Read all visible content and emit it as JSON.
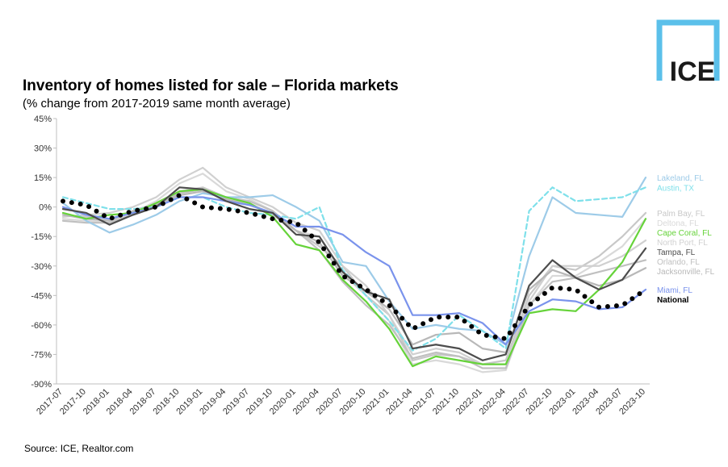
{
  "logo": "ICE",
  "source": "Source: ICE, Realtor.com",
  "chart_data": {
    "type": "line",
    "title": "Inventory of homes listed for sale – Florida markets",
    "subtitle": "(% change from 2017-2019 same month average)",
    "categories": [
      "2017-07",
      "2017-10",
      "2018-01",
      "2018-04",
      "2018-07",
      "2018-10",
      "2019-01",
      "2019-04",
      "2019-07",
      "2019-10",
      "2020-01",
      "2020-04",
      "2020-07",
      "2020-10",
      "2021-01",
      "2021-04",
      "2021-07",
      "2021-10",
      "2022-01",
      "2022-04",
      "2022-07",
      "2022-10",
      "2023-01",
      "2023-04",
      "2023-07",
      "2023-10"
    ],
    "ylim": [
      -90,
      45
    ],
    "yticks": [
      {
        "value": 45,
        "label": "45%"
      },
      {
        "value": 30,
        "label": "30%"
      },
      {
        "value": 15,
        "label": "15%"
      },
      {
        "value": 0,
        "label": "0%"
      },
      {
        "value": -15,
        "label": "-15%"
      },
      {
        "value": -30,
        "label": "-30%"
      },
      {
        "value": -45,
        "label": "-45%"
      },
      {
        "value": -60,
        "label": "-60%"
      },
      {
        "value": -75,
        "label": "-75%"
      },
      {
        "value": -90,
        "label": "-90%"
      }
    ],
    "series": [
      {
        "name": "Palm Bay, FL",
        "color": "#c8c8c8",
        "values": [
          -4,
          -5,
          -6,
          -2,
          2,
          8,
          10,
          5,
          2,
          -4,
          -12,
          -20,
          -30,
          -45,
          -55,
          -78,
          -75,
          -76,
          -80,
          -78,
          -45,
          -30,
          -32,
          -25,
          -15,
          -3
        ]
      },
      {
        "name": "Deltona, FL",
        "color": "#d9d9d9",
        "values": [
          -6,
          -7,
          -8,
          -3,
          3,
          12,
          17,
          8,
          4,
          -2,
          -12,
          -15,
          -34,
          -45,
          -58,
          -80,
          -78,
          -80,
          -84,
          -83,
          -50,
          -35,
          -35,
          -28,
          -20,
          -6
        ]
      },
      {
        "name": "North Port, FL",
        "color": "#d0d0d0",
        "values": [
          -5,
          -4,
          -3,
          0,
          5,
          14,
          20,
          10,
          5,
          0,
          -8,
          -12,
          -30,
          -40,
          -55,
          -75,
          -72,
          -74,
          -80,
          -80,
          -48,
          -30,
          -30,
          -30,
          -25,
          -17
        ]
      },
      {
        "name": "Orlando, FL",
        "color": "#c0c0c0",
        "values": [
          -7,
          -8,
          -8,
          -4,
          1,
          7,
          9,
          5,
          3,
          -2,
          -12,
          -22,
          -38,
          -50,
          -60,
          -77,
          -74,
          -76,
          -82,
          -82,
          -50,
          -38,
          -36,
          -33,
          -30,
          -27
        ]
      },
      {
        "name": "Jacksonville, FL",
        "color": "#b8b8b8",
        "values": [
          -4,
          -6,
          -7,
          -2,
          1,
          6,
          8,
          4,
          1,
          -3,
          -12,
          -18,
          -35,
          -43,
          -52,
          -70,
          -65,
          -64,
          -72,
          -74,
          -42,
          -32,
          -36,
          -40,
          -37,
          -31
        ]
      },
      {
        "name": "Lakeland, FL",
        "color": "#9dcbe8",
        "values": [
          2,
          -7,
          -13,
          -9,
          -4,
          3,
          7,
          5,
          5,
          6,
          0,
          -7,
          -28,
          -30,
          -48,
          -62,
          -60,
          -62,
          -63,
          -70,
          -25,
          5,
          -3,
          -4,
          -5,
          15
        ]
      },
      {
        "name": "Austin, TX",
        "color": "#7fe0ea",
        "dash": true,
        "values": [
          5,
          2,
          -1,
          -1,
          0,
          5,
          5,
          0,
          -3,
          -4,
          -6,
          0,
          -32,
          -45,
          -58,
          -73,
          -67,
          -55,
          -63,
          -72,
          -2,
          10,
          3,
          4,
          5,
          10
        ]
      },
      {
        "name": "Cape Coral, FL",
        "color": "#66d33a",
        "values": [
          -3,
          -6,
          -4,
          -3,
          2,
          8,
          9,
          5,
          2,
          -5,
          -19,
          -22,
          -37,
          -48,
          -62,
          -81,
          -76,
          -78,
          -80,
          -80,
          -54,
          -52,
          -53,
          -42,
          -28,
          -6
        ]
      },
      {
        "name": "Miami, FL",
        "color": "#7a93ec",
        "values": [
          0,
          -4,
          -6,
          -3,
          0,
          5,
          5,
          3,
          1,
          -3,
          -10,
          -10,
          -14,
          -23,
          -30,
          -55,
          -55,
          -54,
          -59,
          -70,
          -53,
          -47,
          -48,
          -52,
          -51,
          -42
        ]
      },
      {
        "name": "Tampa, FL",
        "color": "#4d4d4d",
        "values": [
          -1,
          -3,
          -9,
          -4,
          0,
          10,
          9,
          3,
          -1,
          -3,
          -14,
          -15,
          -33,
          -43,
          -47,
          -72,
          -70,
          -72,
          -78,
          -75,
          -40,
          -27,
          -36,
          -42,
          -37,
          -21
        ]
      },
      {
        "name": "National",
        "color": "#000000",
        "dotted": true,
        "values": [
          3,
          1,
          -6,
          -2,
          0,
          6,
          0,
          -1,
          -3,
          -6,
          -8,
          -18,
          -35,
          -42,
          -50,
          -62,
          -56,
          -56,
          -65,
          -67,
          -50,
          -41,
          -42,
          -51,
          -50,
          -42
        ]
      }
    ]
  }
}
